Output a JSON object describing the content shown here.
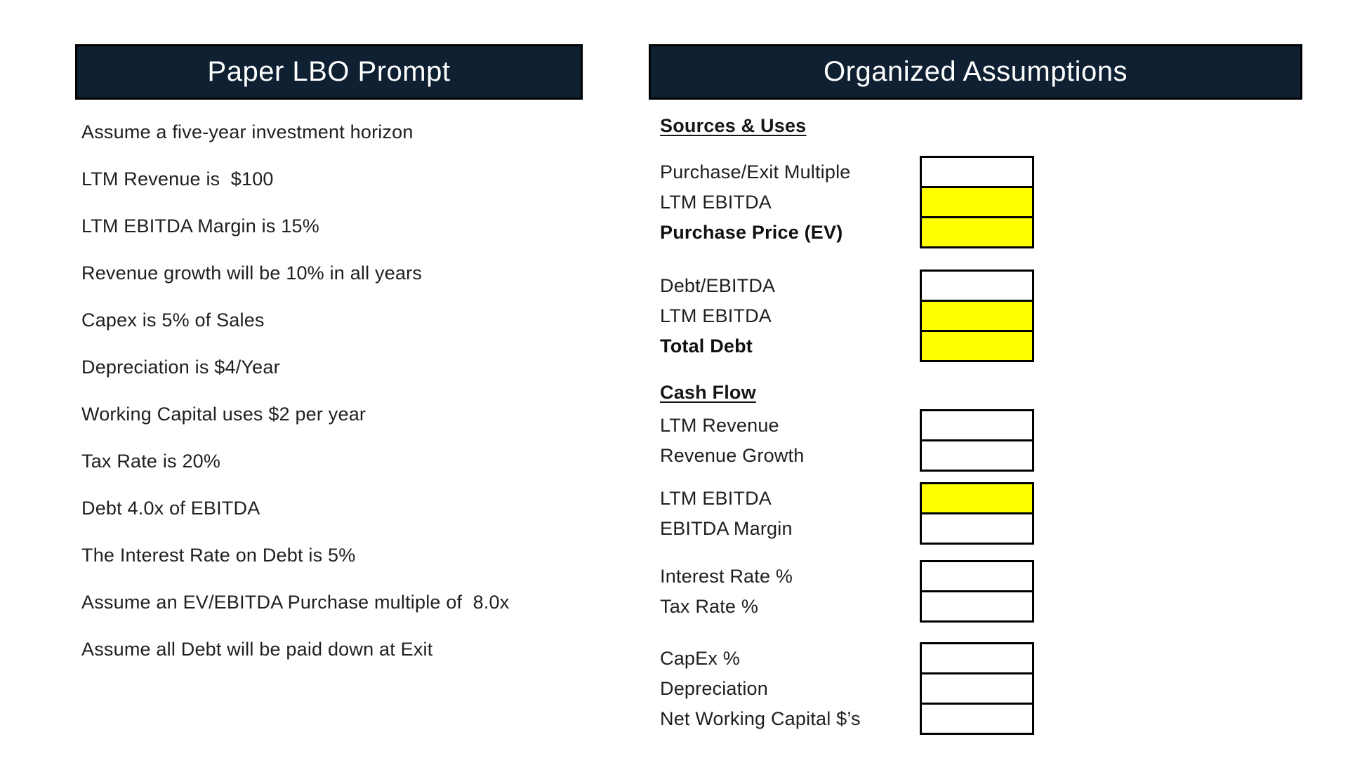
{
  "left_panel": {
    "title": "Paper LBO Prompt",
    "items": [
      "Assume a five-year investment horizon",
      "LTM Revenue is  $100",
      "LTM EBITDA Margin is 15%",
      "Revenue growth will be 10% in all years",
      "Capex is 5% of Sales",
      "Depreciation is $4/Year",
      "Working Capital uses $2 per year",
      "Tax Rate is 20%",
      "Debt 4.0x of EBITDA",
      "The Interest Rate on Debt is 5%",
      "Assume an EV/EBITDA Purchase multiple of  8.0x",
      "Assume all Debt will be paid down at Exit"
    ]
  },
  "right_panel": {
    "title": "Organized Assumptions",
    "sections": [
      {
        "heading": "Sources & Uses",
        "groups": [
          {
            "rows": [
              {
                "label": "Purchase/Exit Multiple",
                "box": "white",
                "bold": false
              },
              {
                "label": "LTM EBITDA",
                "box": "yellow",
                "bold": false
              },
              {
                "label": "Purchase Price (EV)",
                "box": "yellow",
                "bold": true
              }
            ]
          },
          {
            "rows": [
              {
                "label": "Debt/EBITDA",
                "box": "white",
                "bold": false
              },
              {
                "label": "LTM EBITDA",
                "box": "yellow",
                "bold": false
              },
              {
                "label": "Total Debt",
                "box": "yellow",
                "bold": true
              }
            ]
          }
        ]
      },
      {
        "heading": "Cash Flow",
        "groups": [
          {
            "rows": [
              {
                "label": "LTM Revenue",
                "box": "white",
                "bold": false
              },
              {
                "label": "Revenue Growth",
                "box": "white",
                "bold": false
              }
            ]
          },
          {
            "rows": [
              {
                "label": "LTM EBITDA",
                "box": "yellow",
                "bold": false
              },
              {
                "label": "EBITDA Margin",
                "box": "white",
                "bold": false
              }
            ]
          },
          {
            "rows": [
              {
                "label": "Interest Rate %",
                "box": "white",
                "bold": false
              },
              {
                "label": "Tax Rate %",
                "box": "white",
                "bold": false
              }
            ]
          },
          {
            "rows": [
              {
                "label": "CapEx %",
                "box": "white",
                "bold": false
              },
              {
                "label": "Depreciation",
                "box": "white",
                "bold": false
              },
              {
                "label": "Net Working Capital $’s",
                "box": "white",
                "bold": false
              }
            ]
          }
        ]
      }
    ]
  },
  "colors": {
    "header_bg": "#0E2032",
    "highlight": "#FFFF00",
    "cell_border": "#000000"
  }
}
